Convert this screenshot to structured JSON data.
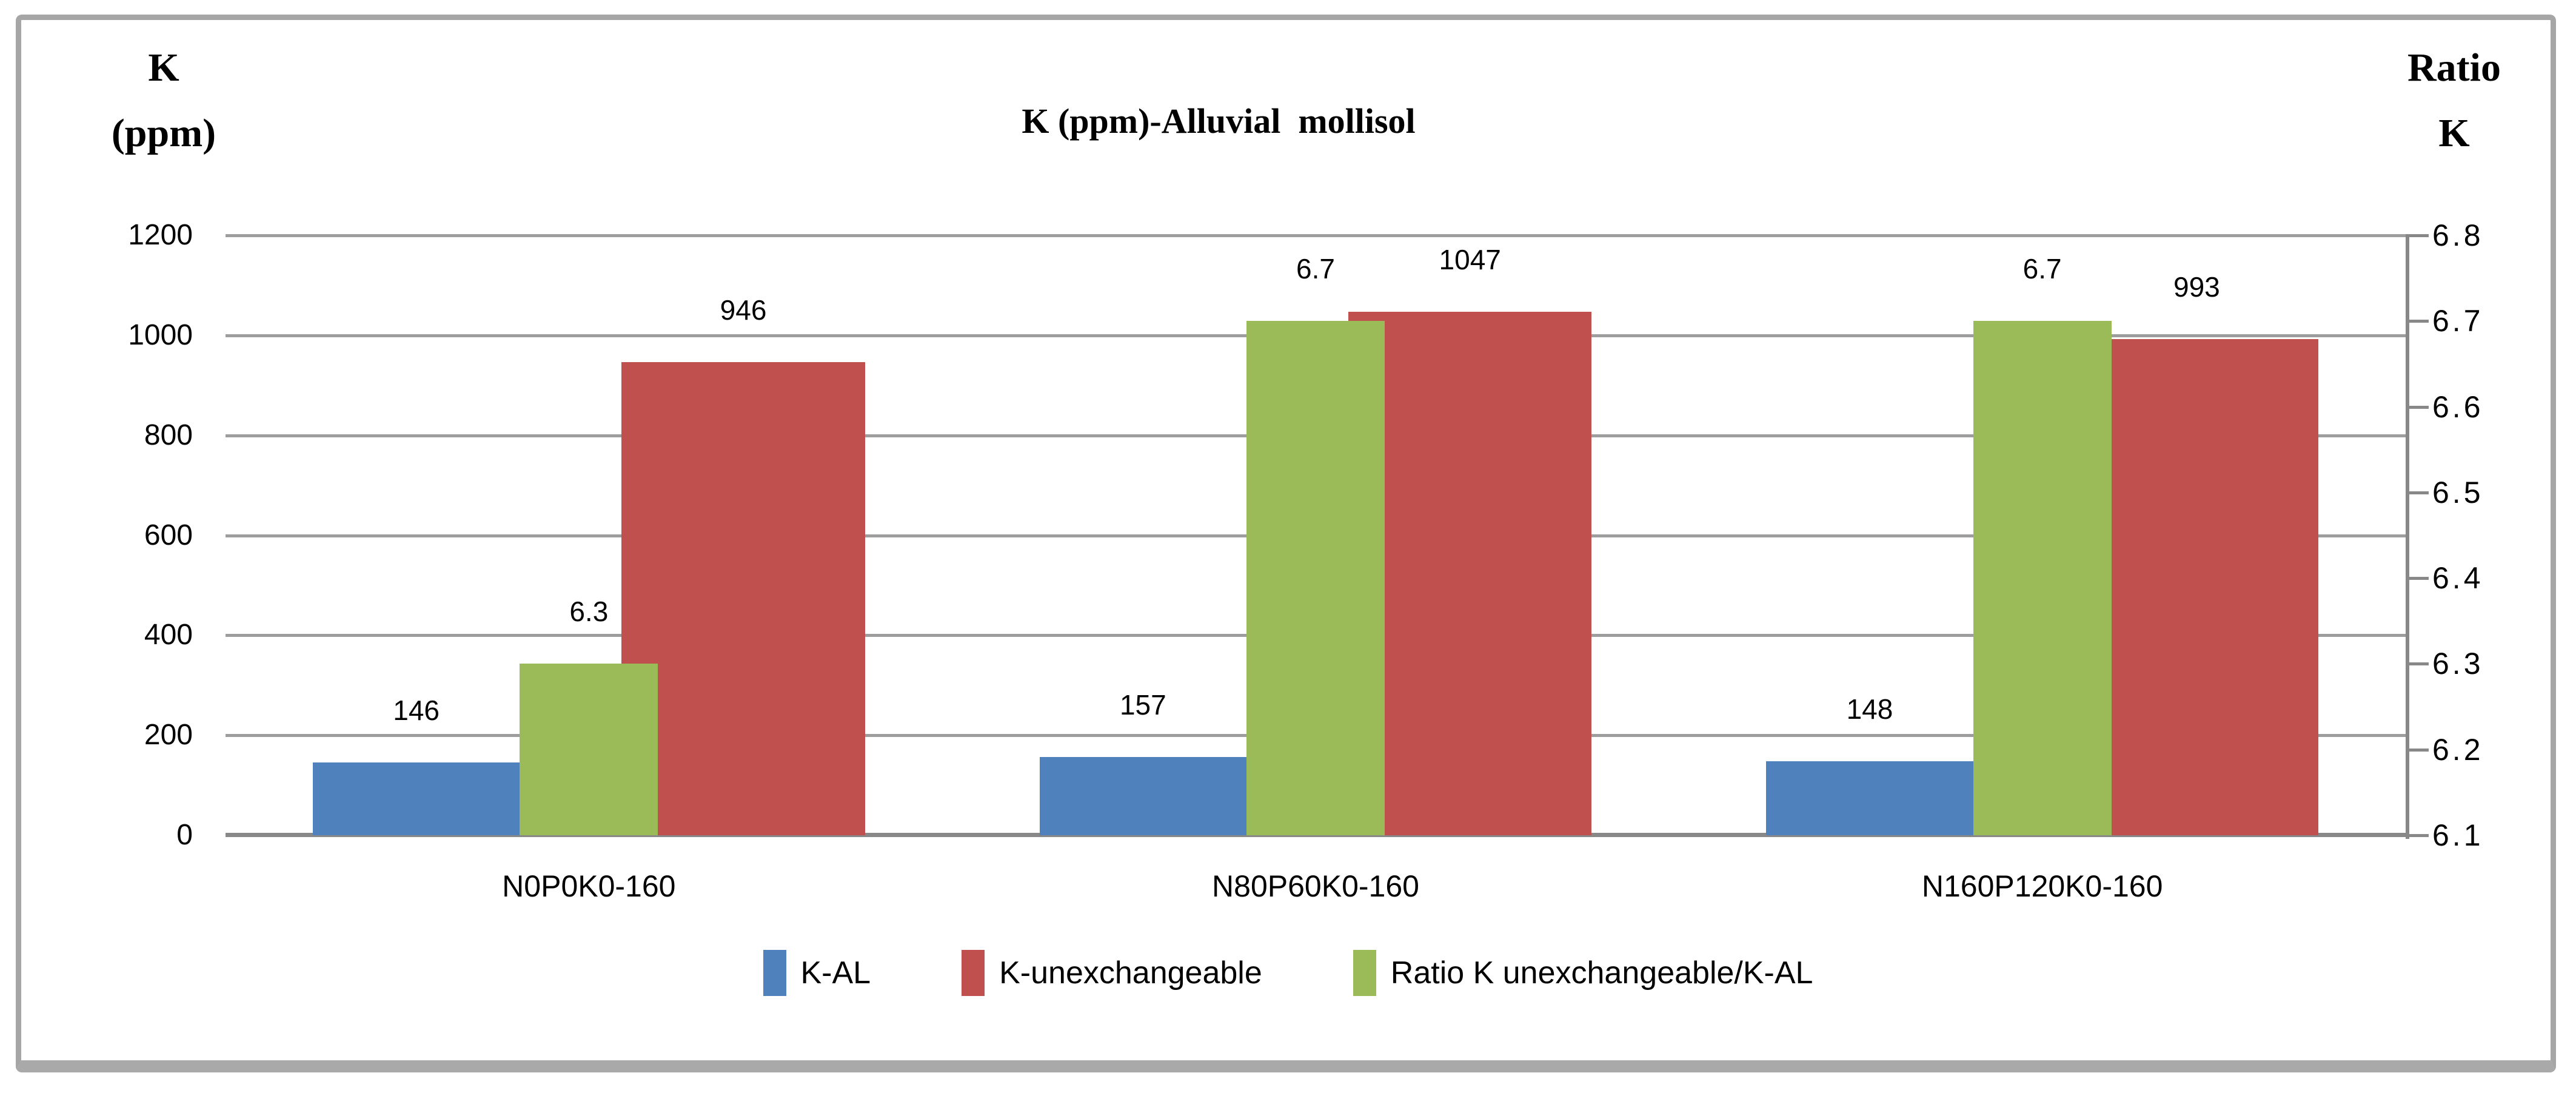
{
  "page": {
    "background": "#FFFFFF",
    "frame_border_color": "#A6A6A6"
  },
  "chart_data": {
    "type": "bar",
    "title": "K (ppm)-Alluvial  mollisol",
    "categories": [
      "N0P0K0-160",
      "N80P60K0-160",
      "N160P120K0-160"
    ],
    "series": [
      {
        "name": "K-AL",
        "axis": "left",
        "color": "#4F81BD",
        "values": [
          146,
          157,
          148
        ],
        "labels": [
          "146",
          "157",
          "148"
        ]
      },
      {
        "name": "K-unexchangeable",
        "axis": "left",
        "color": "#C0504D",
        "values": [
          946,
          1047,
          993
        ],
        "labels": [
          "946",
          "1047",
          "993"
        ]
      },
      {
        "name": "Ratio K unexchangeable/K-AL",
        "axis": "right",
        "color": "#9BBB59",
        "values": [
          6.3,
          6.7,
          6.7
        ],
        "labels": [
          "6.3",
          "6.7",
          "6.7"
        ]
      }
    ],
    "left_axis": {
      "title_lines": [
        "K",
        "(ppm)"
      ],
      "min": 0,
      "max": 1200,
      "step": 200,
      "tick_labels": [
        "0",
        "200",
        "400",
        "600",
        "800",
        "1000",
        "1200"
      ]
    },
    "right_axis": {
      "title_lines": [
        "Ratio",
        "K"
      ],
      "min": 6.1,
      "max": 6.8,
      "step": 0.1,
      "tick_labels": [
        "6.1",
        "6.2",
        "6.3",
        "6.4",
        "6.5",
        "6.6",
        "6.7",
        "6.8"
      ]
    },
    "grid": {
      "horizontal": true,
      "interval_ppm": 200,
      "vertical": false
    },
    "legend_position": "bottom",
    "styles": {
      "gridline_color": "#9D9D9D",
      "axis_line_color": "#888888",
      "text_color": "#000000"
    }
  }
}
